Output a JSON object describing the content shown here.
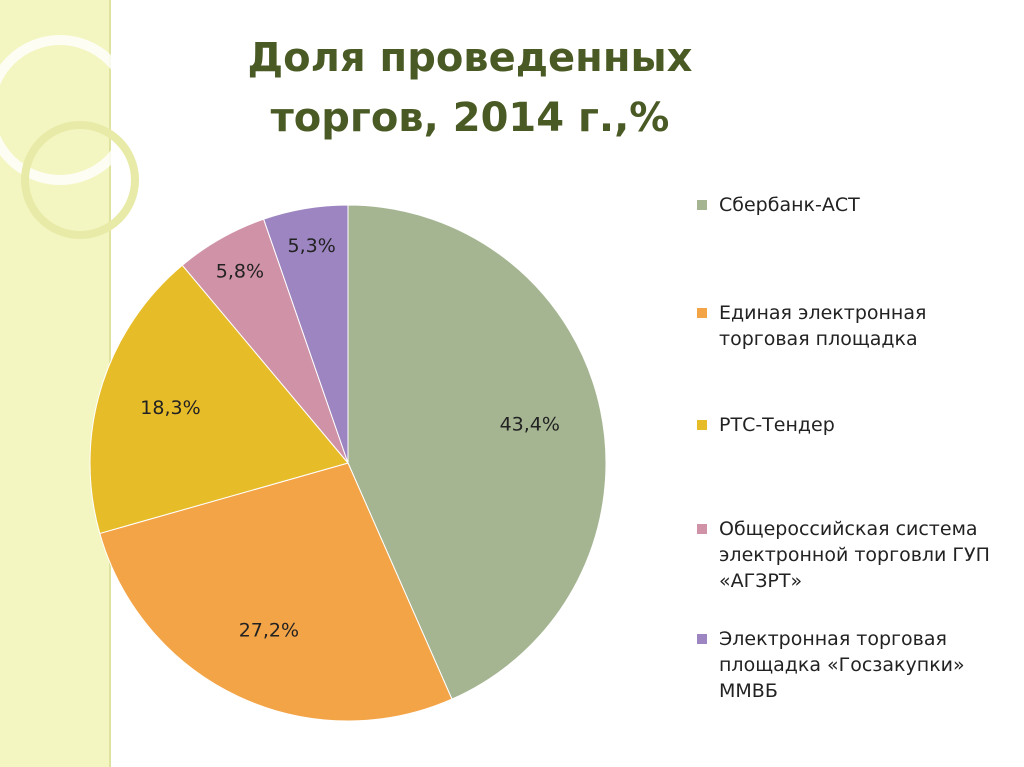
{
  "chart_data": {
    "type": "pie",
    "title": "Доля проведенных торгов, 2014 г.,%",
    "categories": [
      "Сбербанк-АСТ",
      "Единая электронная торговая площадка",
      "РТС-Тендер",
      "Общероссийская система электронной торговли ГУП «АГЗРТ»",
      "Электронная торговая площадка «Госзакупки» ММВБ"
    ],
    "values": [
      43.4,
      27.2,
      18.3,
      5.8,
      5.3
    ],
    "value_labels": [
      "43,4%",
      "27,2%",
      "18,3%",
      "5,8%",
      "5,3%"
    ],
    "colors": [
      "#a5b592",
      "#f3a447",
      "#e7bc29",
      "#d092a7",
      "#9c85c0"
    ],
    "legend": "right"
  }
}
